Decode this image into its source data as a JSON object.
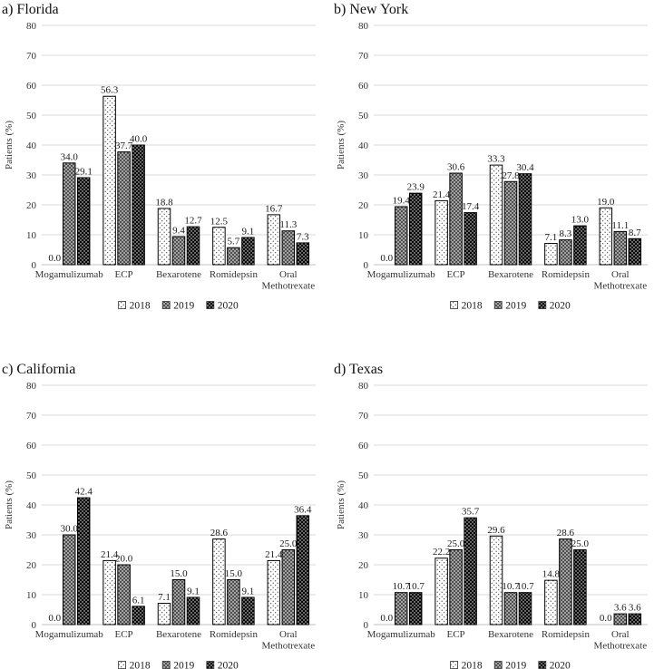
{
  "figure": {
    "ylabel": "Patients (%)",
    "legend_labels": [
      "2018",
      "2019",
      "2020"
    ],
    "colors": {
      "background": "#ffffff",
      "gridline": "#d9d9d9",
      "zero_axis": "#c0c0c0",
      "axis_text": "#333333",
      "data_label_text": "#1a1a1a",
      "title_text": "#111111",
      "bar_border": "#000000",
      "s2018_bg": "#ffffff",
      "s2018_dot": "#2b2b2b",
      "s2019_bg": "#a3a3a3",
      "s2019_dot": "#4f4f4f",
      "s2020_bg": "#050505",
      "s2020_dot": "#ffffff"
    }
  },
  "chart_data": [
    {
      "type": "bar",
      "title": "a) Florida",
      "ylabel": "Patients (%)",
      "ylim": [
        0,
        80
      ],
      "ytick_step": 10,
      "grid": true,
      "legend_position": "bottom",
      "categories": [
        "Mogamulizumab",
        "ECP",
        "Bexarotene",
        "Romidepsin",
        "Oral Methotrexate"
      ],
      "series": [
        {
          "name": "2018",
          "values": [
            0.0,
            56.3,
            18.8,
            12.5,
            16.7
          ]
        },
        {
          "name": "2019",
          "values": [
            34.0,
            37.7,
            9.4,
            5.7,
            11.3
          ]
        },
        {
          "name": "2020",
          "values": [
            29.1,
            40.0,
            12.7,
            9.1,
            7.3
          ]
        }
      ]
    },
    {
      "type": "bar",
      "title": "b) New York",
      "ylabel": "Patients (%)",
      "ylim": [
        0,
        80
      ],
      "ytick_step": 10,
      "grid": true,
      "legend_position": "bottom",
      "categories": [
        "Mogamulizumab",
        "ECP",
        "Bexarotene",
        "Romidepsin",
        "Oral Methotrexate"
      ],
      "series": [
        {
          "name": "2018",
          "values": [
            0.0,
            21.4,
            33.3,
            7.1,
            19.0
          ]
        },
        {
          "name": "2019",
          "values": [
            19.4,
            30.6,
            27.8,
            8.3,
            11.1
          ]
        },
        {
          "name": "2020",
          "values": [
            23.9,
            17.4,
            30.4,
            13.0,
            8.7
          ]
        }
      ]
    },
    {
      "type": "bar",
      "title": "c) California",
      "ylabel": "Patients (%)",
      "ylim": [
        0,
        80
      ],
      "ytick_step": 10,
      "grid": true,
      "legend_position": "bottom",
      "categories": [
        "Mogamulizumab",
        "ECP",
        "Bexarotene",
        "Romidepsin",
        "Oral Methotrexate"
      ],
      "series": [
        {
          "name": "2018",
          "values": [
            0.0,
            21.4,
            7.1,
            28.6,
            21.4
          ]
        },
        {
          "name": "2019",
          "values": [
            30.0,
            20.0,
            15.0,
            15.0,
            25.0
          ]
        },
        {
          "name": "2020",
          "values": [
            42.4,
            6.1,
            9.1,
            9.1,
            36.4
          ]
        }
      ]
    },
    {
      "type": "bar",
      "title": "d) Texas",
      "ylabel": "Patients (%)",
      "ylim": [
        0,
        80
      ],
      "ytick_step": 10,
      "grid": true,
      "legend_position": "bottom",
      "categories": [
        "Mogamulizumab",
        "ECP",
        "Bexarotene",
        "Romidepsin",
        "Oral Methotrexate"
      ],
      "series": [
        {
          "name": "2018",
          "values": [
            0.0,
            22.2,
            29.6,
            14.8,
            0.0
          ]
        },
        {
          "name": "2019",
          "values": [
            10.7,
            25.0,
            10.7,
            28.6,
            3.6
          ]
        },
        {
          "name": "2020",
          "values": [
            10.7,
            35.7,
            10.7,
            25.0,
            3.6
          ]
        }
      ]
    }
  ]
}
